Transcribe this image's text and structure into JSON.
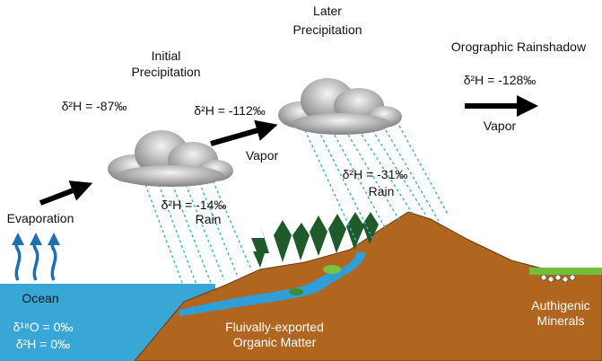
{
  "labels": {
    "initial_precipitation": [
      "Initial",
      "Precipitation"
    ],
    "later_precipitation": [
      "Later",
      "Precipitation"
    ],
    "rainshadow": "Orographic Rainshadow",
    "ocean_vapor_isotope": "δ²H = -87‰",
    "initial_vapor_isotope": "δ²H = -112‰",
    "rainshadow_vapor_isotope": "δ²H = -128‰",
    "vapor_1": "Vapor",
    "vapor_2": "Vapor",
    "initial_rain": [
      "δ²H = -14‰",
      "Rain"
    ],
    "later_rain": [
      "δ²H = -31‰",
      "Rain"
    ],
    "evaporation": "Evaporation",
    "ocean": "Ocean",
    "ocean_isotopes": [
      "δ¹⁸O = 0‰",
      "δ²H = 0‰"
    ],
    "organic_matter": [
      "Fluivally-exported",
      "Organic Matter"
    ],
    "minerals": [
      "Authigenic",
      "Minerals"
    ]
  }
}
